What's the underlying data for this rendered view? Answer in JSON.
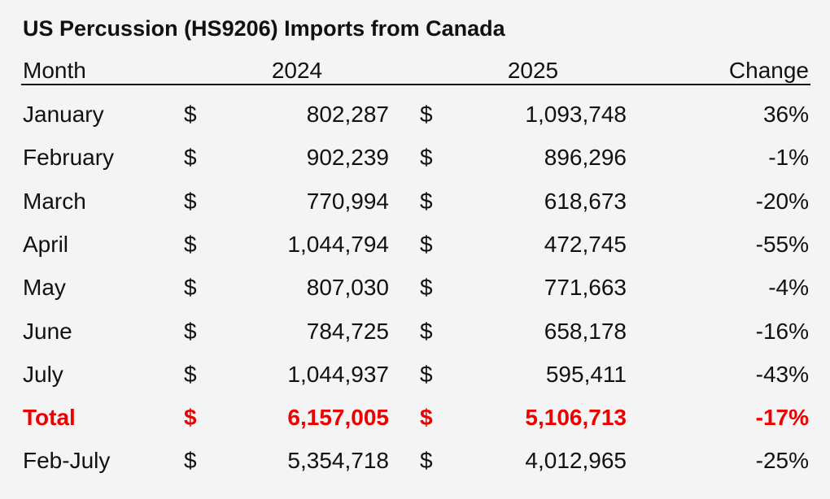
{
  "title": "US Percussion (HS9206) Imports from Canada",
  "currency": "$",
  "header": [
    "Month",
    "2024",
    "2025",
    "Change"
  ],
  "rows": [
    [
      "January",
      "802,287",
      "1,093,748",
      "36%"
    ],
    [
      "February",
      "902,239",
      "896,296",
      "-1%"
    ],
    [
      "March",
      "770,994",
      "618,673",
      "-20%"
    ],
    [
      "April",
      "1,044,794",
      "472,745",
      "-55%"
    ],
    [
      "May",
      "807,030",
      "771,663",
      "-4%"
    ],
    [
      "June",
      "784,725",
      "658,178",
      "-16%"
    ],
    [
      "July",
      "1,044,937",
      "595,411",
      "-43%"
    ],
    [
      "Total",
      "6,157,005",
      "5,106,713",
      "-17%"
    ],
    [
      "Feb-July",
      "5,354,718",
      "4,012,965",
      "-25%"
    ]
  ]
}
